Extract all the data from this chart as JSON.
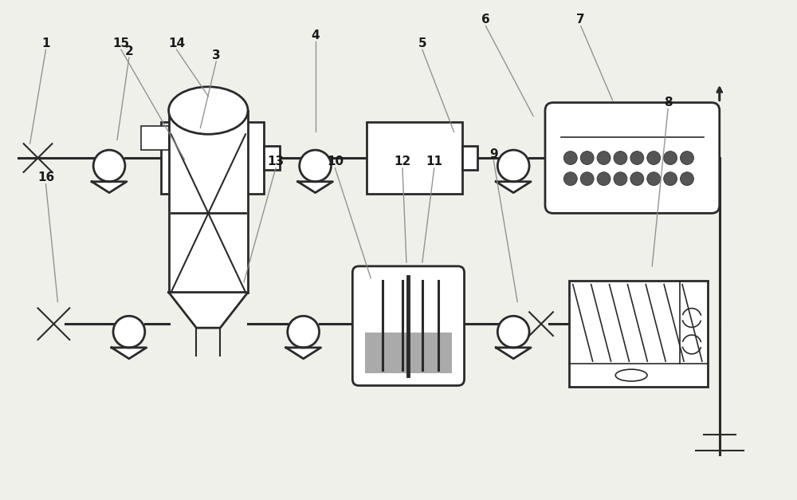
{
  "bg_color": "#f0f0eb",
  "line_color": "#2a2a2a",
  "white": "#ffffff",
  "gray": "#aaaaaa",
  "dark_gray": "#666666",
  "figsize": [
    10.0,
    6.27
  ],
  "dpi": 100
}
